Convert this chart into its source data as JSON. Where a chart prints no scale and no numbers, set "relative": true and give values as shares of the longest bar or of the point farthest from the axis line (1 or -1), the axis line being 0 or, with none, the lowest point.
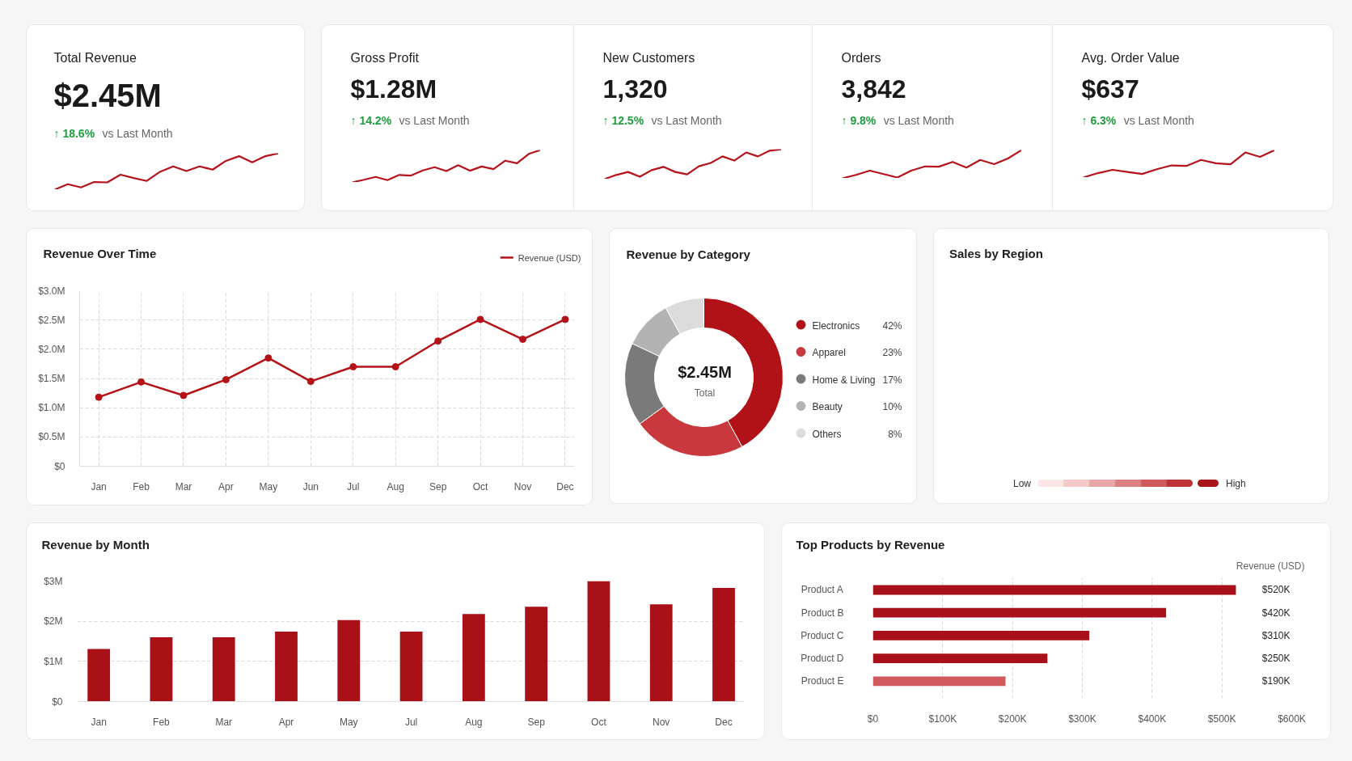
{
  "chart_data": [
    {
      "type": "other",
      "title": "Total Revenue",
      "annotations": [
        "$2.45M",
        "↑ 18.6%",
        "vs Last Month"
      ]
    },
    {
      "type": "line",
      "relative": true,
      "categories": [
        null,
        null,
        null,
        null,
        null,
        null,
        null,
        null,
        null,
        null,
        null,
        null,
        null,
        null,
        null,
        null,
        null,
        null
      ],
      "values": [
        0,
        0.15,
        0.06,
        0.21,
        0.2,
        0.41,
        0.32,
        0.24,
        0.49,
        0.64,
        0.51,
        0.64,
        0.55,
        0.79,
        0.92,
        0.75,
        0.92,
        1.0
      ],
      "color": "#b5121b"
    },
    {
      "type": "other",
      "title": "Gross Profit",
      "annotations": [
        "$1.28M",
        "↑ 14.2%",
        "vs Last Month"
      ]
    },
    {
      "type": "line",
      "relative": true,
      "categories": [
        null,
        null,
        null,
        null,
        null,
        null,
        null,
        null,
        null,
        null,
        null,
        null,
        null,
        null,
        null,
        null,
        null
      ],
      "values": [
        0,
        0.08,
        0.17,
        0.07,
        0.23,
        0.21,
        0.37,
        0.47,
        0.35,
        0.53,
        0.36,
        0.49,
        0.41,
        0.67,
        0.59,
        0.88,
        1.0
      ],
      "color": "#b5121b"
    },
    {
      "type": "other",
      "title": "New Customers",
      "annotations": [
        "1,320",
        "↑ 12.5%",
        "vs Last Month"
      ]
    },
    {
      "type": "line",
      "relative": true,
      "categories": [
        null,
        null,
        null,
        null,
        null,
        null,
        null,
        null,
        null,
        null,
        null,
        null,
        null,
        null,
        null,
        null
      ],
      "values": [
        0,
        0.14,
        0.24,
        0.08,
        0.3,
        0.41,
        0.24,
        0.16,
        0.43,
        0.54,
        0.76,
        0.62,
        0.89,
        0.76,
        0.95,
        1.0
      ],
      "color": "#b5121b"
    },
    {
      "type": "other",
      "title": "Orders",
      "annotations": [
        "3,842",
        "↑ 9.8%",
        "vs Last Month"
      ]
    },
    {
      "type": "line",
      "relative": true,
      "categories": [
        null,
        null,
        null,
        null,
        null,
        null,
        null,
        null,
        null,
        null,
        null,
        null,
        null,
        null
      ],
      "values": [
        0,
        0.12,
        0.27,
        0.15,
        0.03,
        0.27,
        0.42,
        0.41,
        0.58,
        0.38,
        0.65,
        0.5,
        0.7,
        1.0
      ],
      "color": "#b5121b"
    },
    {
      "type": "other",
      "title": "Avg. Order Value",
      "annotations": [
        "$637",
        "↑ 6.3%",
        "vs Last Month"
      ]
    },
    {
      "type": "line",
      "relative": true,
      "categories": [
        null,
        null,
        null,
        null,
        null,
        null,
        null,
        null,
        null,
        null,
        null,
        null,
        null,
        null
      ],
      "values": [
        0,
        0.16,
        0.28,
        0.2,
        0.13,
        0.3,
        0.44,
        0.42,
        0.64,
        0.52,
        0.48,
        0.91,
        0.75,
        1.0
      ],
      "color": "#b5121b"
    },
    {
      "type": "line",
      "title": "Revenue Over Time",
      "categories": [
        "Jan",
        "Feb",
        "Mar",
        "Apr",
        "May",
        "Jun",
        "Jul",
        "Aug",
        "Sep",
        "Oct",
        "Nov",
        "Dec"
      ],
      "series": [
        {
          "name": "Revenue (USD)",
          "color": "#b31217",
          "values": [
            1.18,
            1.44,
            1.21,
            1.48,
            1.85,
            1.45,
            1.7,
            1.7,
            2.14,
            2.51,
            2.17,
            2.51
          ]
        }
      ],
      "ylim": [
        0,
        3.0
      ],
      "yticks": [
        {
          "value": 0,
          "label": "$0"
        },
        {
          "value": 0.5,
          "label": "$0.5M"
        },
        {
          "value": 1.0,
          "label": "$1.0M"
        },
        {
          "value": 1.5,
          "label": "$1.5M"
        },
        {
          "value": 2.0,
          "label": "$2.0M"
        },
        {
          "value": 2.5,
          "label": "$2.5M"
        },
        {
          "value": 3.0,
          "label": "$3.0M"
        }
      ],
      "grid": true,
      "legend": "top right",
      "marker": "circle"
    },
    {
      "type": "donut",
      "title": "Revenue by Category",
      "categories": [
        "Electronics",
        "Apparel",
        "Home & Living",
        "Beauty",
        "Others"
      ],
      "values": [
        42,
        23,
        17,
        10,
        8
      ],
      "colors": [
        "#b01218",
        "#c9383d",
        "#7a7a7a",
        "#b3b3b3",
        "#dcdcdc"
      ],
      "value_labels": [
        "42%",
        "23%",
        "17%",
        "10%",
        "8%"
      ],
      "annotations": [
        "$2.45M",
        "Total"
      ],
      "legend": "right"
    },
    {
      "type": "other",
      "title": "Sales by Region",
      "annotations": [
        "Low",
        "High"
      ]
    },
    {
      "type": "bar",
      "title": "Revenue by Month",
      "categories": [
        "Jan",
        "Feb",
        "Mar",
        "Apr",
        "May",
        "Jul",
        "Aug",
        "Sep",
        "Oct",
        "Nov",
        "Dec"
      ],
      "values": [
        1.31,
        1.6,
        1.6,
        1.74,
        2.03,
        1.74,
        2.18,
        2.36,
        3.0,
        2.42,
        2.83
      ],
      "color": "#a91017",
      "ylim": [
        0,
        3
      ],
      "yticks": [
        {
          "value": 0,
          "label": "$0"
        },
        {
          "value": 1,
          "label": "$1M"
        },
        {
          "value": 2,
          "label": "$2M"
        },
        {
          "value": 3,
          "label": "$3M"
        }
      ],
      "grid": "y"
    },
    {
      "type": "bar",
      "orientation": "horizontal",
      "title": "Top Products by Revenue",
      "categories": [
        "Product A",
        "Product B",
        "Product C",
        "Product D",
        "Product E"
      ],
      "values": [
        520,
        420,
        310,
        250,
        190
      ],
      "colors": [
        "#a8111a",
        "#a8111a",
        "#a8111a",
        "#a8111a",
        "#d05a5e"
      ],
      "value_labels": [
        "$520K",
        "$420K",
        "$310K",
        "$250K",
        "$190K"
      ],
      "xlim": [
        0,
        600
      ],
      "xticks": [
        {
          "value": 0,
          "label": "$0"
        },
        {
          "value": 100,
          "label": "$100K"
        },
        {
          "value": 200,
          "label": "$200K"
        },
        {
          "value": 300,
          "label": "$300K"
        },
        {
          "value": 400,
          "label": "$400K"
        },
        {
          "value": 500,
          "label": "$500K"
        },
        {
          "value": 600,
          "label": "$600K"
        }
      ],
      "grid": "x",
      "annotations": [
        "Revenue (USD)"
      ]
    }
  ]
}
